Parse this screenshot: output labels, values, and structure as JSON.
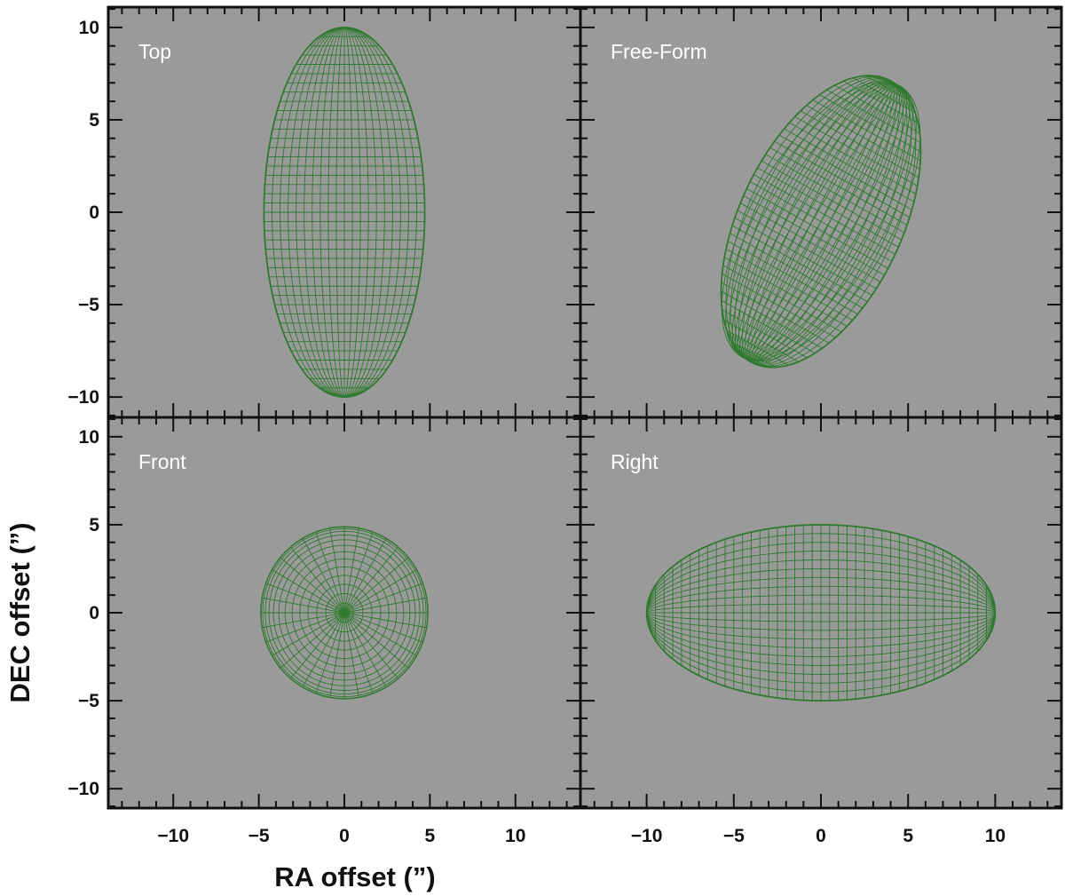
{
  "chart_data": {
    "type": "line",
    "xlabel": "RA offset (”)",
    "ylabel": "DEC offset (”)",
    "xlim": [
      -13.8,
      13.8
    ],
    "ylim": [
      -11.1,
      11.1
    ],
    "xticks": [
      -10,
      -5,
      0,
      5,
      10
    ],
    "yticks": [
      -10,
      -5,
      0,
      5,
      10
    ],
    "xtick_labels": [
      "−10",
      "−5",
      "0",
      "5",
      "10"
    ],
    "ytick_labels": [
      "−10",
      "−5",
      "0",
      "5",
      "10"
    ],
    "grid": false,
    "background_color": "#9a9a9a",
    "mesh_color": "#2f7a2f",
    "panels": [
      {
        "label": "Top",
        "view": "top",
        "center": [
          0,
          0
        ],
        "semi_axes": [
          4.7,
          10
        ],
        "rotation_deg": 0
      },
      {
        "label": "Free-Form",
        "view": "oblique",
        "center": [
          0,
          -0.5
        ],
        "semi_axes": [
          4.6,
          8.6
        ],
        "rotation_deg": -28
      },
      {
        "label": "Front",
        "view": "front",
        "center": [
          0,
          0
        ],
        "semi_axes": [
          4.9,
          4.9
        ],
        "rotation_deg": 0
      },
      {
        "label": "Right",
        "view": "right",
        "center": [
          0,
          0
        ],
        "semi_axes": [
          10,
          5
        ],
        "rotation_deg": 0
      }
    ]
  }
}
